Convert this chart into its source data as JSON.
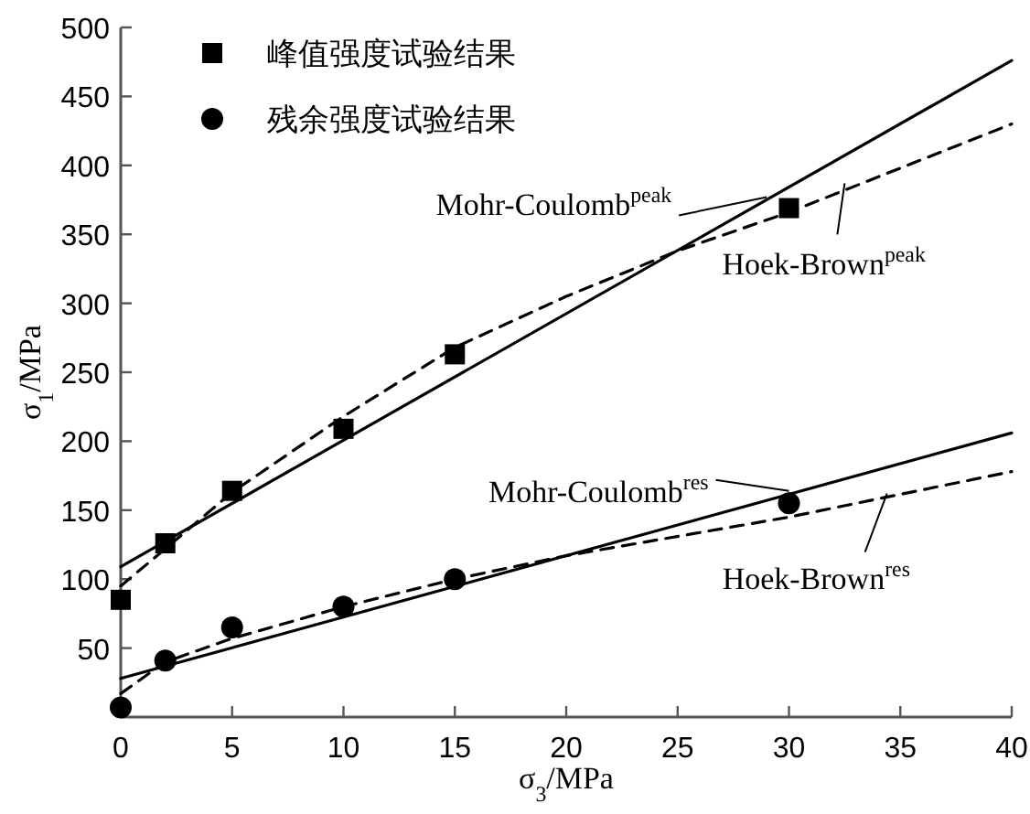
{
  "chart_data": {
    "type": "scatter",
    "xlabel": "σ$_{3}$/MPa",
    "ylabel": "σ$_{1}$/MPa",
    "xlim": [
      0,
      40
    ],
    "ylim": [
      0,
      500
    ],
    "xticks": [
      0,
      5,
      10,
      15,
      20,
      25,
      30,
      35,
      40
    ],
    "yticks": [
      50,
      100,
      150,
      200,
      250,
      300,
      350,
      400,
      450,
      500
    ],
    "grid": false,
    "legend": "top left",
    "series": [
      {
        "name": "峰值强度试验结果",
        "marker": "square",
        "color": "#000000",
        "x": [
          0,
          2,
          5,
          10,
          15,
          30
        ],
        "values": [
          85,
          126,
          164,
          209,
          263,
          369
        ]
      },
      {
        "name": "残余强度试验结果",
        "marker": "circle",
        "color": "#000000",
        "x": [
          0,
          2,
          5,
          10,
          15,
          30
        ],
        "values": [
          7,
          41,
          65,
          80,
          100,
          155
        ]
      },
      {
        "type": "line",
        "line_style": "solid",
        "color": "#000000",
        "x": [
          0,
          40
        ],
        "values": [
          109,
          476
        ]
      },
      {
        "type": "line",
        "line_style": "dashed",
        "color": "#000000",
        "x": [
          0,
          2,
          5,
          10,
          15,
          20,
          25,
          30,
          35,
          40
        ],
        "values": [
          95,
          122,
          163,
          218,
          268,
          305,
          338,
          366,
          398,
          430
        ]
      },
      {
        "type": "line",
        "line_style": "solid",
        "color": "#000000",
        "x": [
          0,
          40
        ],
        "values": [
          28,
          206
        ]
      },
      {
        "type": "line",
        "line_style": "dashed",
        "color": "#000000",
        "x": [
          0,
          2,
          5,
          10,
          15,
          20,
          30,
          40
        ],
        "values": [
          17,
          40,
          57,
          80,
          100,
          117,
          145,
          178
        ]
      }
    ],
    "annotations": [
      {
        "text": "Mohr-Coulomb$^{peak}$",
        "x": 29,
        "y": 377
      },
      {
        "text": "Hoek-Brown$^{peak}$",
        "x": 32.5,
        "y": 387
      },
      {
        "text": "Mohr-Coulomb$^{res}$",
        "x": 30,
        "y": 164
      },
      {
        "text": "Hoek-Brown$^{res}$",
        "x": 34.4,
        "y": 162
      }
    ]
  }
}
